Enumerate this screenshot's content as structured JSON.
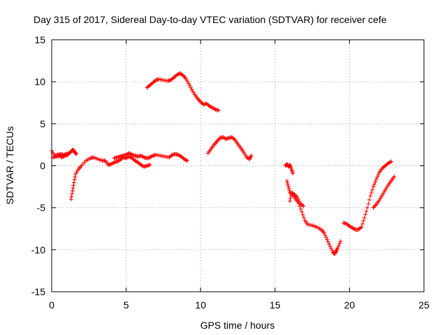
{
  "chart_data": {
    "type": "scatter",
    "title": "Day 315 of 2017, Sidereal Day-to-day VTEC variation (SDTVAR) for receiver cefe",
    "xlabel": "GPS time / hours",
    "ylabel": "SDTVAR / TECUs",
    "xlim": [
      0,
      25
    ],
    "ylim": [
      -15,
      15
    ],
    "xticks": [
      0,
      5,
      10,
      15,
      20,
      25
    ],
    "yticks": [
      -15,
      -10,
      -5,
      0,
      5,
      10,
      15
    ],
    "grid": true,
    "marker": "+",
    "color": "#ff0000",
    "series": [
      {
        "name": "seg1",
        "x": [
          0.0,
          0.2,
          0.4,
          0.6,
          0.8,
          1.0,
          1.2,
          1.35,
          1.45,
          1.55,
          1.65
        ],
        "y": [
          1.8,
          1.2,
          1.3,
          1.4,
          1.3,
          1.4,
          1.5,
          1.8,
          1.9,
          1.6,
          1.4
        ]
      },
      {
        "name": "seg1b",
        "x": [
          0.1,
          0.3,
          0.5,
          0.7,
          0.9,
          1.1
        ],
        "y": [
          1.0,
          1.1,
          1.2,
          1.0,
          1.2,
          1.3
        ]
      },
      {
        "name": "seg2",
        "x": [
          1.3,
          1.4,
          1.5,
          1.6,
          1.8,
          2.0,
          2.3,
          2.6,
          2.8,
          3.1,
          3.4,
          3.6,
          3.8,
          4.0,
          4.2,
          4.4,
          4.6,
          4.8,
          5.0,
          5.2,
          5.4,
          5.6,
          5.8,
          6.0,
          6.2,
          6.4,
          6.6
        ],
        "y": [
          -4.0,
          -3.0,
          -2.0,
          -1.0,
          -0.4,
          0.0,
          0.6,
          0.9,
          1.0,
          0.8,
          0.6,
          0.6,
          0.1,
          0.2,
          0.4,
          0.5,
          0.7,
          1.0,
          0.9,
          1.1,
          0.9,
          0.6,
          0.4,
          0.1,
          -0.1,
          0.0,
          0.1
        ]
      },
      {
        "name": "seg3",
        "x": [
          4.2,
          4.4,
          4.6,
          4.8,
          5.0,
          5.2,
          5.4,
          5.6,
          5.8,
          6.0,
          6.2,
          6.4,
          6.6,
          6.8,
          7.0,
          7.3,
          7.6,
          7.9,
          8.1,
          8.3,
          8.5,
          8.7,
          8.9,
          9.1
        ],
        "y": [
          0.9,
          1.0,
          1.1,
          1.2,
          1.3,
          1.5,
          1.3,
          1.2,
          1.1,
          1.2,
          1.0,
          0.9,
          1.0,
          1.2,
          1.3,
          1.2,
          1.1,
          1.0,
          1.3,
          1.4,
          1.3,
          1.1,
          0.8,
          0.6
        ]
      },
      {
        "name": "seg4",
        "x": [
          6.4,
          6.6,
          6.8,
          7.0,
          7.2,
          7.5,
          7.8,
          8.0,
          8.2,
          8.4,
          8.6,
          8.8,
          9.0,
          9.2,
          9.4,
          9.6,
          9.8,
          10.0,
          10.2,
          10.4,
          10.6,
          10.8,
          11.0,
          11.2
        ],
        "y": [
          9.3,
          9.6,
          9.9,
          10.2,
          10.3,
          10.2,
          10.1,
          10.2,
          10.5,
          10.8,
          11.0,
          10.8,
          10.4,
          9.8,
          9.1,
          8.5,
          8.0,
          7.6,
          7.3,
          7.4,
          7.1,
          6.9,
          6.7,
          6.6
        ]
      },
      {
        "name": "seg5",
        "x": [
          10.5,
          10.7,
          10.9,
          11.1,
          11.3,
          11.5,
          11.7,
          11.9,
          12.1,
          12.3,
          12.5,
          12.7,
          12.9,
          13.1,
          13.3,
          13.4
        ],
        "y": [
          1.5,
          2.0,
          2.5,
          2.9,
          3.3,
          3.4,
          3.2,
          3.3,
          3.4,
          3.1,
          2.6,
          2.1,
          1.6,
          1.0,
          0.8,
          1.2
        ]
      },
      {
        "name": "seg6",
        "x": [
          15.7,
          15.8,
          15.9,
          16.0,
          16.1,
          16.2
        ],
        "y": [
          0.0,
          0.2,
          -0.1,
          0.1,
          -0.4,
          -0.9
        ]
      },
      {
        "name": "seg7",
        "x": [
          15.8,
          15.9,
          16.0,
          16.2,
          16.4,
          16.6,
          16.8,
          17.0,
          17.2,
          17.5,
          17.8,
          18.1,
          18.3,
          18.5,
          18.7,
          18.9,
          19.0,
          19.1,
          19.2,
          19.4
        ],
        "y": [
          -1.8,
          -2.5,
          -3.2,
          -3.5,
          -4.0,
          -4.5,
          -5.5,
          -6.5,
          -7.0,
          -7.1,
          -7.3,
          -7.6,
          -8.0,
          -8.8,
          -9.6,
          -10.3,
          -10.5,
          -10.2,
          -9.8,
          -9.0
        ]
      },
      {
        "name": "seg8",
        "x": [
          16.0,
          16.1,
          16.3,
          16.5,
          16.7,
          16.9
        ],
        "y": [
          -4.2,
          -3.2,
          -3.4,
          -3.8,
          -4.5,
          -4.8
        ]
      },
      {
        "name": "seg9",
        "x": [
          19.6,
          19.8,
          20.0,
          20.2,
          20.4,
          20.6,
          20.8,
          21.0,
          21.2,
          21.4,
          21.6,
          21.8,
          22.0,
          22.2,
          22.4,
          22.6,
          22.8
        ],
        "y": [
          -6.8,
          -6.9,
          -7.2,
          -7.4,
          -7.6,
          -7.6,
          -7.3,
          -6.2,
          -5.0,
          -3.6,
          -2.5,
          -1.6,
          -0.8,
          -0.3,
          0.0,
          0.3,
          0.5
        ]
      },
      {
        "name": "seg10",
        "x": [
          21.6,
          21.8,
          22.0,
          22.2,
          22.4,
          22.6,
          22.8,
          23.0
        ],
        "y": [
          -5.0,
          -4.6,
          -4.1,
          -3.5,
          -2.9,
          -2.3,
          -1.8,
          -1.3
        ]
      }
    ]
  }
}
